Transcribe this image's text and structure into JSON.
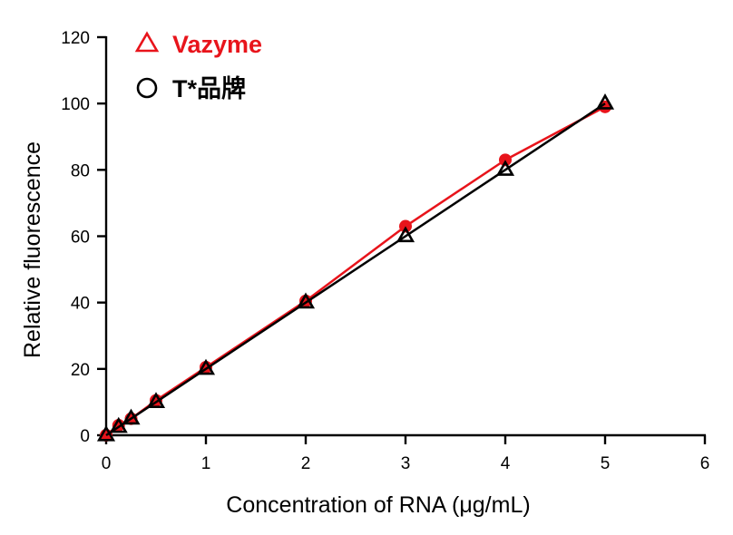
{
  "chart_data": {
    "type": "line",
    "xlabel": "Concentration of RNA (μg/mL)",
    "ylabel": "Relative fluorescence",
    "xlim": [
      0,
      6
    ],
    "ylim": [
      0,
      120
    ],
    "xticks": [
      0,
      1,
      2,
      3,
      4,
      5,
      6
    ],
    "yticks": [
      0,
      20,
      40,
      60,
      80,
      100,
      120
    ],
    "grid": false,
    "legend_position": "top-left",
    "series": [
      {
        "name": "Vazyme",
        "legend_marker": "triangle",
        "color": "#e8141b",
        "x": [
          0,
          0.125,
          0.25,
          0.5,
          1,
          2,
          3,
          4,
          5
        ],
        "y": [
          0,
          3,
          5,
          10.5,
          20.5,
          40.5,
          63,
          83,
          99
        ]
      },
      {
        "name": "T*品牌",
        "legend_marker": "circle",
        "color": "#000000",
        "x": [
          0,
          0.125,
          0.25,
          0.5,
          1,
          2,
          3,
          4,
          5
        ],
        "y": [
          0,
          2.5,
          5,
          10,
          20,
          40,
          60,
          80,
          100
        ]
      }
    ]
  }
}
